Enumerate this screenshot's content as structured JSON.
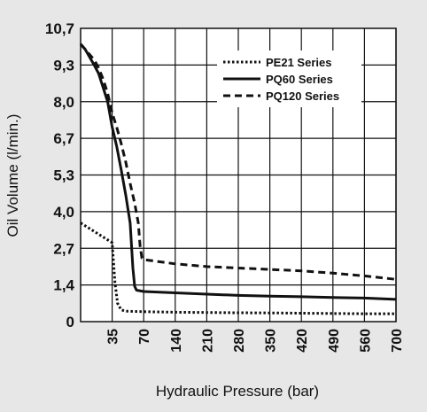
{
  "chart_data": {
    "type": "line",
    "xlabel": "Hydraulic Pressure (bar)",
    "ylabel": "Oil Volume (l/min.)",
    "x_ticks": [
      "35",
      "70",
      "140",
      "210",
      "280",
      "350",
      "420",
      "490",
      "560",
      "700"
    ],
    "y_ticks": [
      "0",
      "1,4",
      "2,7",
      "4,0",
      "5,3",
      "6,7",
      "8,0",
      "9,3",
      "10,7"
    ],
    "ylim": [
      0,
      10.7
    ],
    "grid": true,
    "legend_position": "top-right",
    "series": [
      {
        "name": "PE21 Series",
        "style": "dotted",
        "points": [
          [
            0,
            3.6
          ],
          [
            10,
            3.4
          ],
          [
            20,
            3.2
          ],
          [
            30,
            3.0
          ],
          [
            35,
            2.9
          ],
          [
            38,
            1.5
          ],
          [
            41,
            0.7
          ],
          [
            45,
            0.45
          ],
          [
            50,
            0.4
          ],
          [
            70,
            0.38
          ],
          [
            140,
            0.36
          ],
          [
            210,
            0.35
          ],
          [
            280,
            0.34
          ],
          [
            350,
            0.33
          ],
          [
            420,
            0.32
          ],
          [
            490,
            0.31
          ],
          [
            560,
            0.3
          ],
          [
            700,
            0.3
          ]
        ]
      },
      {
        "name": "PQ60 Series",
        "style": "solid",
        "points": [
          [
            0,
            10.1
          ],
          [
            5,
            9.9
          ],
          [
            10,
            9.6
          ],
          [
            15,
            9.3
          ],
          [
            20,
            9.0
          ],
          [
            25,
            8.5
          ],
          [
            30,
            8.0
          ],
          [
            35,
            7.1
          ],
          [
            40,
            6.4
          ],
          [
            45,
            5.5
          ],
          [
            50,
            4.6
          ],
          [
            55,
            3.6
          ],
          [
            58,
            2.0
          ],
          [
            60,
            1.35
          ],
          [
            62,
            1.2
          ],
          [
            70,
            1.15
          ],
          [
            140,
            1.1
          ],
          [
            210,
            1.05
          ],
          [
            280,
            1.0
          ],
          [
            350,
            0.97
          ],
          [
            420,
            0.95
          ],
          [
            490,
            0.92
          ],
          [
            560,
            0.9
          ],
          [
            700,
            0.85
          ]
        ]
      },
      {
        "name": "PQ120 Series",
        "style": "dashed",
        "points": [
          [
            0,
            10.1
          ],
          [
            5,
            9.9
          ],
          [
            10,
            9.7
          ],
          [
            15,
            9.5
          ],
          [
            20,
            9.2
          ],
          [
            25,
            8.8
          ],
          [
            30,
            8.3
          ],
          [
            35,
            7.6
          ],
          [
            40,
            7.1
          ],
          [
            45,
            6.5
          ],
          [
            50,
            5.8
          ],
          [
            55,
            5.0
          ],
          [
            60,
            4.3
          ],
          [
            64,
            3.6
          ],
          [
            66,
            2.8
          ],
          [
            68,
            2.35
          ],
          [
            70,
            2.3
          ],
          [
            140,
            2.15
          ],
          [
            210,
            2.05
          ],
          [
            280,
            2.0
          ],
          [
            350,
            1.95
          ],
          [
            420,
            1.9
          ],
          [
            490,
            1.82
          ],
          [
            560,
            1.72
          ],
          [
            700,
            1.6
          ]
        ]
      }
    ]
  }
}
